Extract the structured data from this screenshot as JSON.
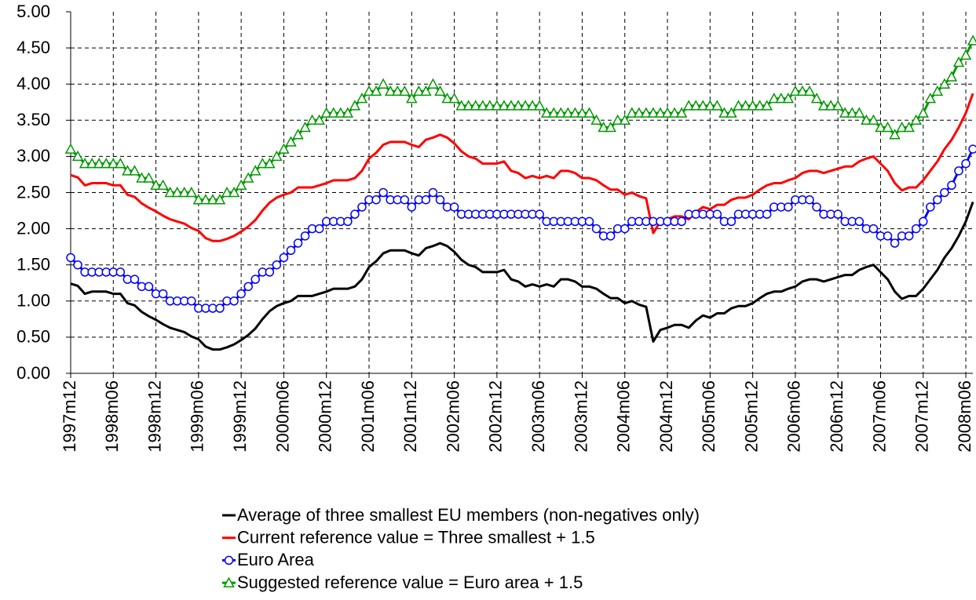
{
  "chart_data": {
    "type": "line",
    "categories": [
      "1997m12",
      null,
      null,
      null,
      null,
      null,
      "1998m06",
      null,
      null,
      null,
      null,
      null,
      "1998m12",
      null,
      null,
      null,
      null,
      null,
      "1999m06",
      null,
      null,
      null,
      null,
      null,
      "1999m12",
      null,
      null,
      null,
      null,
      null,
      "2000m06",
      null,
      null,
      null,
      null,
      null,
      "2000m12",
      null,
      null,
      null,
      null,
      null,
      "2001m06",
      null,
      null,
      null,
      null,
      null,
      "2001m12",
      null,
      null,
      null,
      null,
      null,
      "2002m06",
      null,
      null,
      null,
      null,
      null,
      "2002m12",
      null,
      null,
      null,
      null,
      null,
      "2003m06",
      null,
      null,
      null,
      null,
      null,
      "2003m12",
      null,
      null,
      null,
      null,
      null,
      "2004m06",
      null,
      null,
      null,
      null,
      null,
      "2004m12",
      null,
      null,
      null,
      null,
      null,
      "2005m06",
      null,
      null,
      null,
      null,
      null,
      "2005m12",
      null,
      null,
      null,
      null,
      null,
      "2006m06",
      null,
      null,
      null,
      null,
      null,
      "2006m12",
      null,
      null,
      null,
      null,
      null,
      "2007m06",
      null,
      null,
      null,
      null,
      null,
      "2007m12",
      null,
      null,
      null,
      null,
      null,
      "2008m06",
      null
    ],
    "series": [
      {
        "name": "Average of three smallest EU members (non-negatives only)",
        "color": "#000000",
        "marker": "none",
        "values": [
          1.24,
          1.21,
          1.1,
          1.13,
          1.13,
          1.13,
          1.1,
          1.1,
          0.97,
          0.94,
          0.85,
          0.79,
          0.74,
          0.68,
          0.63,
          0.6,
          0.57,
          0.51,
          0.47,
          0.37,
          0.33,
          0.33,
          0.36,
          0.4,
          0.46,
          0.53,
          0.62,
          0.75,
          0.86,
          0.93,
          0.97,
          1.0,
          1.07,
          1.07,
          1.07,
          1.1,
          1.13,
          1.17,
          1.17,
          1.17,
          1.2,
          1.3,
          1.47,
          1.55,
          1.66,
          1.7,
          1.7,
          1.7,
          1.66,
          1.63,
          1.73,
          1.76,
          1.8,
          1.76,
          1.68,
          1.57,
          1.5,
          1.47,
          1.4,
          1.4,
          1.4,
          1.43,
          1.3,
          1.27,
          1.2,
          1.23,
          1.2,
          1.23,
          1.2,
          1.3,
          1.3,
          1.27,
          1.2,
          1.2,
          1.17,
          1.1,
          1.04,
          1.04,
          0.97,
          1.0,
          0.95,
          0.92,
          0.44,
          0.6,
          0.63,
          0.67,
          0.67,
          0.63,
          0.73,
          0.8,
          0.77,
          0.83,
          0.83,
          0.9,
          0.93,
          0.93,
          0.97,
          1.04,
          1.1,
          1.13,
          1.13,
          1.17,
          1.2,
          1.27,
          1.3,
          1.3,
          1.27,
          1.3,
          1.33,
          1.36,
          1.36,
          1.43,
          1.47,
          1.5,
          1.4,
          1.3,
          1.13,
          1.03,
          1.07,
          1.07,
          1.17,
          1.3,
          1.43,
          1.6,
          1.73,
          1.9,
          2.1,
          2.37
        ]
      },
      {
        "name": "Current reference value = Three smallest + 1.5",
        "color": "#ff0000",
        "marker": "none",
        "values": [
          2.74,
          2.71,
          2.6,
          2.63,
          2.63,
          2.63,
          2.6,
          2.6,
          2.47,
          2.44,
          2.35,
          2.29,
          2.24,
          2.18,
          2.13,
          2.1,
          2.07,
          2.01,
          1.97,
          1.87,
          1.83,
          1.83,
          1.86,
          1.9,
          1.96,
          2.03,
          2.12,
          2.25,
          2.36,
          2.43,
          2.47,
          2.5,
          2.57,
          2.57,
          2.57,
          2.6,
          2.63,
          2.67,
          2.67,
          2.67,
          2.7,
          2.8,
          2.97,
          3.05,
          3.16,
          3.2,
          3.2,
          3.2,
          3.16,
          3.13,
          3.23,
          3.26,
          3.3,
          3.26,
          3.18,
          3.07,
          3.0,
          2.97,
          2.9,
          2.9,
          2.9,
          2.93,
          2.8,
          2.77,
          2.7,
          2.73,
          2.7,
          2.73,
          2.7,
          2.8,
          2.8,
          2.77,
          2.7,
          2.7,
          2.67,
          2.6,
          2.54,
          2.54,
          2.47,
          2.5,
          2.45,
          2.42,
          1.94,
          2.1,
          2.13,
          2.17,
          2.17,
          2.13,
          2.23,
          2.3,
          2.27,
          2.33,
          2.33,
          2.4,
          2.43,
          2.43,
          2.47,
          2.54,
          2.6,
          2.63,
          2.63,
          2.67,
          2.7,
          2.77,
          2.8,
          2.8,
          2.77,
          2.8,
          2.83,
          2.86,
          2.86,
          2.93,
          2.97,
          3.0,
          2.9,
          2.8,
          2.63,
          2.53,
          2.57,
          2.57,
          2.67,
          2.8,
          2.93,
          3.1,
          3.23,
          3.4,
          3.6,
          3.87
        ]
      },
      {
        "name": "Euro Area",
        "color": "#0000ff",
        "marker": "circle",
        "values": [
          1.6,
          1.5,
          1.4,
          1.4,
          1.4,
          1.4,
          1.4,
          1.4,
          1.3,
          1.3,
          1.2,
          1.2,
          1.1,
          1.1,
          1.0,
          1.0,
          1.0,
          1.0,
          0.9,
          0.9,
          0.9,
          0.9,
          1.0,
          1.0,
          1.1,
          1.2,
          1.3,
          1.4,
          1.4,
          1.5,
          1.6,
          1.7,
          1.8,
          1.9,
          2.0,
          2.0,
          2.1,
          2.1,
          2.1,
          2.1,
          2.2,
          2.3,
          2.4,
          2.4,
          2.5,
          2.4,
          2.4,
          2.4,
          2.3,
          2.4,
          2.4,
          2.5,
          2.4,
          2.3,
          2.3,
          2.2,
          2.2,
          2.2,
          2.2,
          2.2,
          2.2,
          2.2,
          2.2,
          2.2,
          2.2,
          2.2,
          2.2,
          2.1,
          2.1,
          2.1,
          2.1,
          2.1,
          2.1,
          2.1,
          2.0,
          1.9,
          1.9,
          2.0,
          2.0,
          2.1,
          2.1,
          2.1,
          2.1,
          2.1,
          2.1,
          2.1,
          2.1,
          2.2,
          2.2,
          2.2,
          2.2,
          2.2,
          2.1,
          2.1,
          2.2,
          2.2,
          2.2,
          2.2,
          2.2,
          2.3,
          2.3,
          2.3,
          2.4,
          2.4,
          2.4,
          2.3,
          2.2,
          2.2,
          2.2,
          2.1,
          2.1,
          2.1,
          2.0,
          2.0,
          1.9,
          1.9,
          1.8,
          1.9,
          1.9,
          2.0,
          2.1,
          2.3,
          2.4,
          2.5,
          2.6,
          2.8,
          2.9,
          3.1
        ]
      },
      {
        "name": "Suggested reference value = Euro area + 1.5",
        "color": "#009900",
        "marker": "triangle",
        "values": [
          3.1,
          3.0,
          2.9,
          2.9,
          2.9,
          2.9,
          2.9,
          2.9,
          2.8,
          2.8,
          2.7,
          2.7,
          2.6,
          2.6,
          2.5,
          2.5,
          2.5,
          2.5,
          2.4,
          2.4,
          2.4,
          2.4,
          2.5,
          2.5,
          2.6,
          2.7,
          2.8,
          2.9,
          2.9,
          3.0,
          3.1,
          3.2,
          3.3,
          3.4,
          3.5,
          3.5,
          3.6,
          3.6,
          3.6,
          3.6,
          3.7,
          3.8,
          3.9,
          3.9,
          4.0,
          3.9,
          3.9,
          3.9,
          3.8,
          3.9,
          3.9,
          4.0,
          3.9,
          3.8,
          3.8,
          3.7,
          3.7,
          3.7,
          3.7,
          3.7,
          3.7,
          3.7,
          3.7,
          3.7,
          3.7,
          3.7,
          3.7,
          3.6,
          3.6,
          3.6,
          3.6,
          3.6,
          3.6,
          3.6,
          3.5,
          3.4,
          3.4,
          3.5,
          3.5,
          3.6,
          3.6,
          3.6,
          3.6,
          3.6,
          3.6,
          3.6,
          3.6,
          3.7,
          3.7,
          3.7,
          3.7,
          3.7,
          3.6,
          3.6,
          3.7,
          3.7,
          3.7,
          3.7,
          3.7,
          3.8,
          3.8,
          3.8,
          3.9,
          3.9,
          3.9,
          3.8,
          3.7,
          3.7,
          3.7,
          3.6,
          3.6,
          3.6,
          3.5,
          3.5,
          3.4,
          3.4,
          3.3,
          3.4,
          3.4,
          3.5,
          3.6,
          3.8,
          3.9,
          4.0,
          4.1,
          4.3,
          4.4,
          4.6
        ]
      }
    ],
    "ylim": [
      0,
      5
    ],
    "yticks": [
      {
        "value": 0,
        "label": "0.00"
      },
      {
        "value": 0.5,
        "label": "0.50"
      },
      {
        "value": 1,
        "label": "1.00"
      },
      {
        "value": 1.5,
        "label": "1.50"
      },
      {
        "value": 2,
        "label": "2.00"
      },
      {
        "value": 2.5,
        "label": "2.50"
      },
      {
        "value": 3,
        "label": "3.00"
      },
      {
        "value": 3.5,
        "label": "3.50"
      },
      {
        "value": 4,
        "label": "4.00"
      },
      {
        "value": 4.5,
        "label": "4.50"
      },
      {
        "value": 5,
        "label": "5.00"
      }
    ],
    "grid": true
  }
}
